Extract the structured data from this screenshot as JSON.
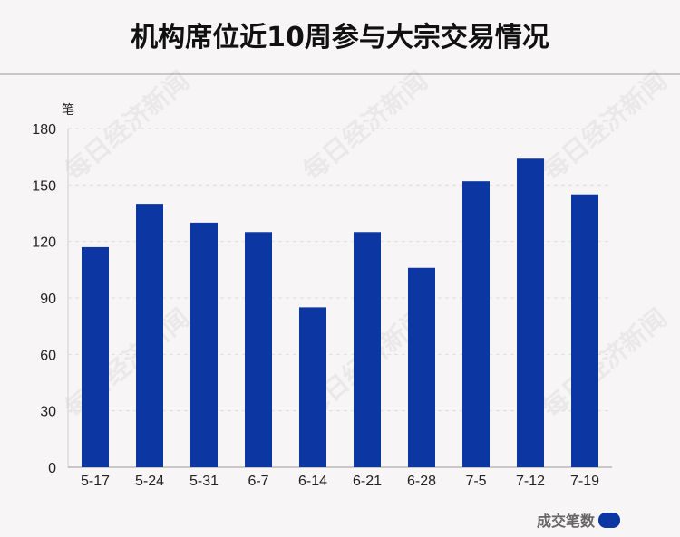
{
  "title": "机构席位近10周参与大宗交易情况",
  "watermark": "每日经济新闻",
  "chart_data": {
    "type": "bar",
    "ylabel": "笔",
    "categories": [
      "5-17",
      "5-24",
      "5-31",
      "6-7",
      "6-14",
      "6-21",
      "6-28",
      "7-5",
      "7-12",
      "7-19"
    ],
    "series": [
      {
        "name": "成交笔数",
        "values": [
          117,
          140,
          130,
          125,
          85,
          125,
          106,
          152,
          164,
          145
        ],
        "color": "#0c36a1"
      }
    ],
    "ylim": [
      0,
      180
    ],
    "yticks": [
      0,
      30,
      60,
      90,
      120,
      150,
      180
    ],
    "grid": true,
    "legend_position": "bottom-right"
  }
}
